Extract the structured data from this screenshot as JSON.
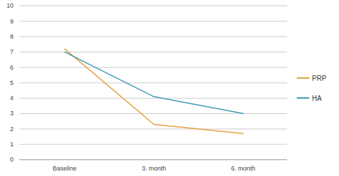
{
  "chart_data": {
    "type": "line",
    "categories": [
      "Baseline",
      "3. month",
      "6. month"
    ],
    "series": [
      {
        "name": "PRP",
        "color": "#e3a03c",
        "values": [
          7.2,
          2.3,
          1.7
        ]
      },
      {
        "name": "HA",
        "color": "#3a9aae",
        "values": [
          7.0,
          4.1,
          3.0
        ]
      }
    ],
    "ylim": [
      0,
      10
    ],
    "yticks": [
      0,
      1,
      2,
      3,
      4,
      5,
      6,
      7,
      8,
      9,
      10
    ],
    "grid": true,
    "legend": "right"
  }
}
